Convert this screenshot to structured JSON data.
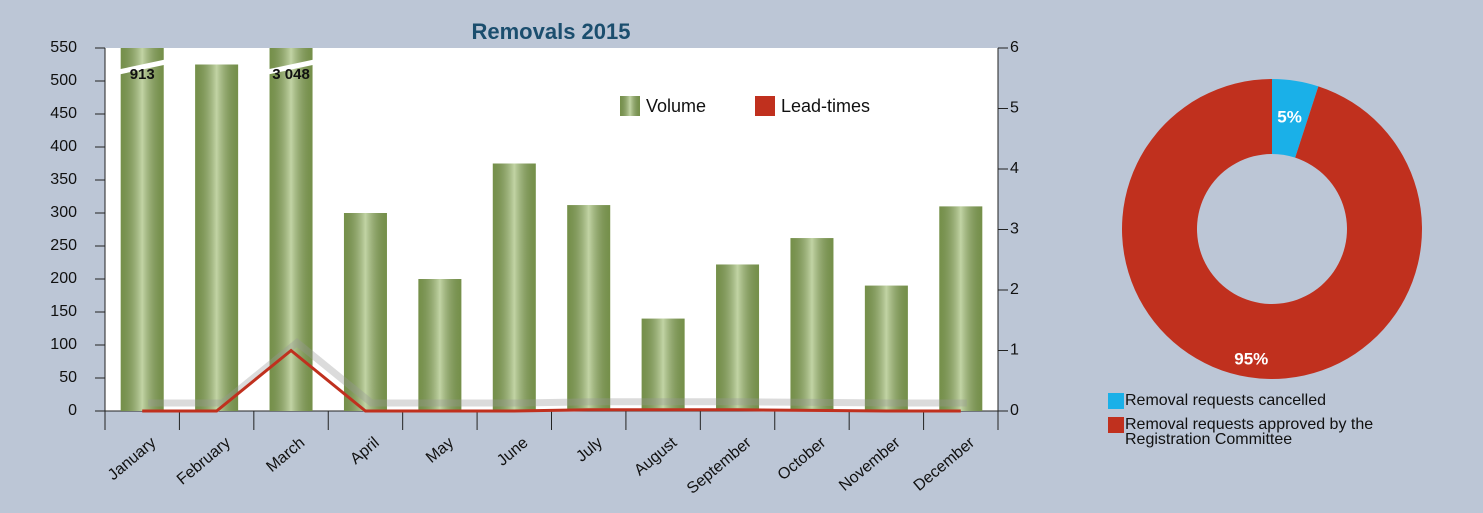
{
  "chart_data": [
    {
      "type": "bar",
      "title": "Removals 2015",
      "categories": [
        "January",
        "February",
        "March",
        "April",
        "May",
        "June",
        "July",
        "August",
        "September",
        "October",
        "November",
        "December"
      ],
      "series": [
        {
          "name": "Volume",
          "type": "bar",
          "color": "#8fb05a",
          "values": [
            913,
            525,
            3048,
            300,
            200,
            375,
            312,
            140,
            222,
            262,
            190,
            310
          ],
          "value_labels": [
            "913",
            null,
            "3 048",
            null,
            null,
            null,
            null,
            null,
            null,
            null,
            null,
            null
          ]
        },
        {
          "name": "Lead-times",
          "type": "line",
          "axis": "y2",
          "color": "#c0301e",
          "values": [
            0,
            0,
            1,
            0,
            0,
            0,
            0.02,
            0.02,
            0.02,
            0.01,
            0,
            0
          ]
        }
      ],
      "ylim": [
        0,
        550
      ],
      "yticks": [
        0,
        50,
        100,
        150,
        200,
        250,
        300,
        350,
        400,
        450,
        500,
        550
      ],
      "y2lim": [
        0,
        6
      ],
      "y2ticks": [
        0,
        1,
        2,
        3,
        4,
        5,
        6
      ]
    },
    {
      "type": "pie",
      "donut": true,
      "categories": [
        "Removal requests cancelled",
        "Removal requests approved by the Registration Committee"
      ],
      "values": [
        5,
        95
      ],
      "value_labels": [
        "5%",
        "95%"
      ],
      "colors": [
        "#1ab0e8",
        "#c0301e"
      ]
    }
  ]
}
